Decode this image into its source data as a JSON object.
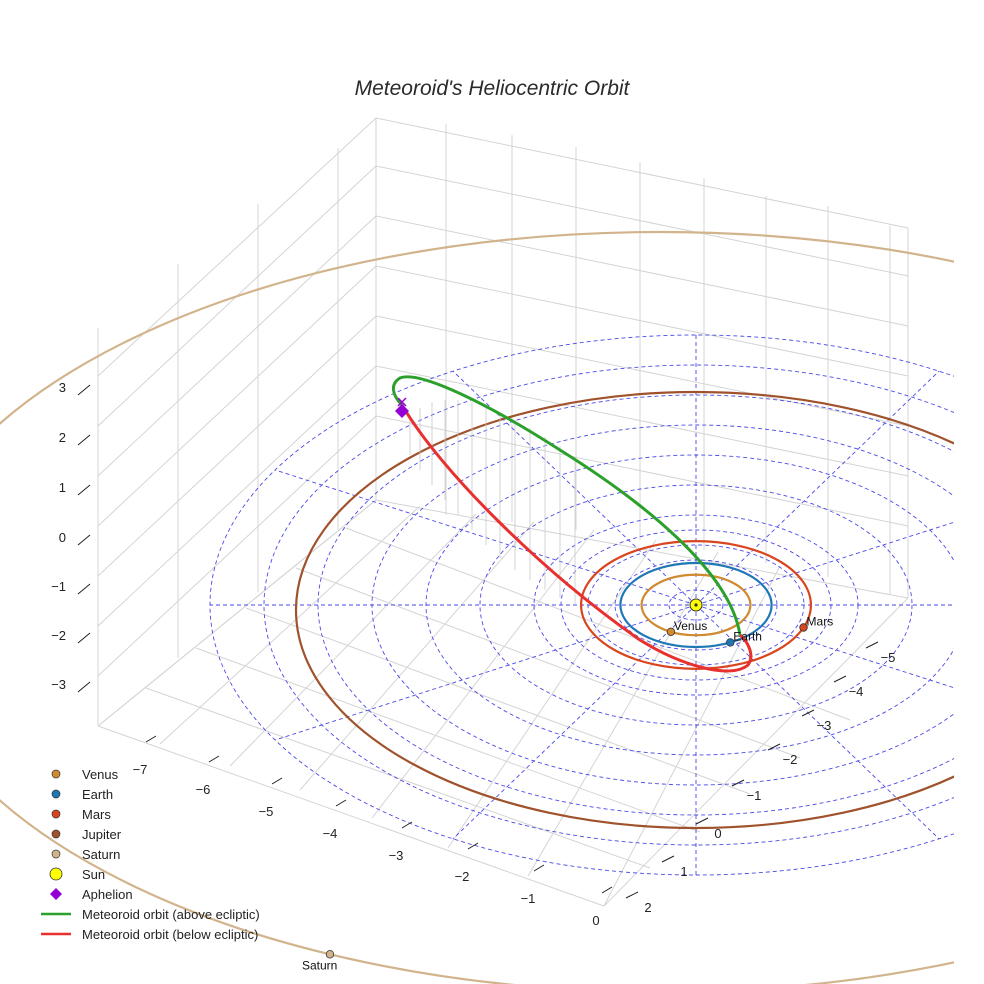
{
  "chart_data": {
    "type": "scatter",
    "title": "Meteoroid's Heliocentric Orbit",
    "colors": {
      "venus": "#d08a30",
      "earth": "#1f77b4",
      "mars": "#d8451f",
      "jupiter": "#a0522d",
      "saturn": "#d2b48c",
      "sun": "#ffff00",
      "aphelion": "#9400d3",
      "above": "#2ca02c",
      "below": "#e8302f",
      "ecliptic_grid": "#4a4ae8"
    },
    "z_ticks": [
      "3",
      "2",
      "1",
      "0",
      "−1",
      "−2",
      "−3"
    ],
    "x_ticks": [
      "−7",
      "−6",
      "−5",
      "−4",
      "−3",
      "−2",
      "−1",
      "0"
    ],
    "y_ticks": [
      "2",
      "1",
      "0",
      "−1",
      "−2",
      "−3",
      "−4",
      "−5"
    ],
    "planets": [
      {
        "name": "Venus",
        "label": "Venus",
        "orbit_au": 0.72,
        "color": "#d08a30"
      },
      {
        "name": "Earth",
        "label": "Earth",
        "orbit_au": 1.0,
        "color": "#1f77b4"
      },
      {
        "name": "Mars",
        "label": "Mars",
        "orbit_au": 1.52,
        "color": "#d8451f"
      },
      {
        "name": "Jupiter",
        "label": "",
        "orbit_au": 5.2,
        "color": "#a0522d"
      },
      {
        "name": "Saturn",
        "label": "Saturn",
        "orbit_au": 9.54,
        "color": "#d2b48c"
      }
    ],
    "legend": [
      {
        "label": "Venus",
        "marker": "dot",
        "color": "#d08a30"
      },
      {
        "label": "Earth",
        "marker": "dot",
        "color": "#1f77b4"
      },
      {
        "label": "Mars",
        "marker": "dot",
        "color": "#d8451f"
      },
      {
        "label": "Jupiter",
        "marker": "dot",
        "color": "#a0522d"
      },
      {
        "label": "Saturn",
        "marker": "dot",
        "color": "#d2b48c"
      },
      {
        "label": "Sun",
        "marker": "sun",
        "color": "#ffff00"
      },
      {
        "label": "Aphelion",
        "marker": "diamond",
        "color": "#9400d3"
      },
      {
        "label": "Meteoroid orbit (above ecliptic)",
        "marker": "line",
        "color": "#2ca02c"
      },
      {
        "label": "Meteoroid orbit (below ecliptic)",
        "marker": "line",
        "color": "#e8302f"
      }
    ]
  }
}
